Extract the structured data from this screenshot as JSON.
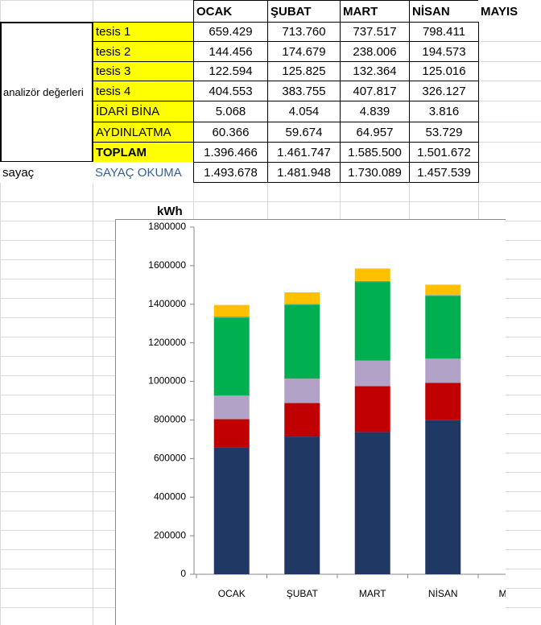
{
  "table": {
    "header": [
      "OCAK",
      "ŞUBAT",
      "MART",
      "NİSAN",
      "MAYIS"
    ],
    "group_label": "analizör değerleri",
    "rows": [
      {
        "label": "tesis 1",
        "values": [
          "659.429",
          "713.760",
          "737.517",
          "798.411"
        ]
      },
      {
        "label": "tesis 2",
        "values": [
          "144.456",
          "174.679",
          "238.006",
          "194.573"
        ]
      },
      {
        "label": "tesis 3",
        "values": [
          "122.594",
          "125.825",
          "132.364",
          "125.016"
        ]
      },
      {
        "label": "tesis 4",
        "values": [
          "404.553",
          "383.755",
          "407.817",
          "326.127"
        ]
      },
      {
        "label": "İDARİ BİNA",
        "values": [
          "5.068",
          "4.054",
          "4.839",
          "3.816"
        ]
      },
      {
        "label": "AYDINLATMA",
        "values": [
          "60.366",
          "59.674",
          "64.957",
          "53.729"
        ]
      },
      {
        "label": "TOPLAM",
        "values": [
          "1.396.466",
          "1.461.747",
          "1.585.500",
          "1.501.672"
        ]
      }
    ],
    "meter_row": {
      "group": "sayaç",
      "label": "SAYAÇ OKUMA",
      "values": [
        "1.493.678",
        "1.481.948",
        "1.730.089",
        "1.457.539"
      ]
    }
  },
  "chart_data": {
    "type": "stacked_bar",
    "y_label": "kWh",
    "categories": [
      "OCAK",
      "ŞUBAT",
      "MART",
      "NİSAN",
      "MAYIS"
    ],
    "series": [
      {
        "name": "tesis 1",
        "color": "#1f3864",
        "values": [
          659429,
          713760,
          737517,
          798411,
          null
        ]
      },
      {
        "name": "tesis 2",
        "color": "#c00000",
        "values": [
          144456,
          174679,
          238006,
          194573,
          null
        ]
      },
      {
        "name": "tesis 3",
        "color": "#b3a2c7",
        "values": [
          122594,
          125825,
          132364,
          125016,
          null
        ]
      },
      {
        "name": "tesis 4",
        "color": "#00b050",
        "values": [
          404553,
          383755,
          407817,
          326127,
          null
        ]
      },
      {
        "name": "İDARİ BİNA",
        "color": "#4bacc6",
        "values": [
          5068,
          4054,
          4839,
          3816,
          null
        ]
      },
      {
        "name": "AYDINLATMA",
        "color": "#ffc000",
        "values": [
          60366,
          59674,
          64957,
          53729,
          null
        ]
      }
    ],
    "ylim": [
      0,
      1800000
    ],
    "yticks": [
      0,
      200000,
      400000,
      600000,
      800000,
      1000000,
      1200000,
      1400000,
      1600000,
      1800000
    ]
  }
}
